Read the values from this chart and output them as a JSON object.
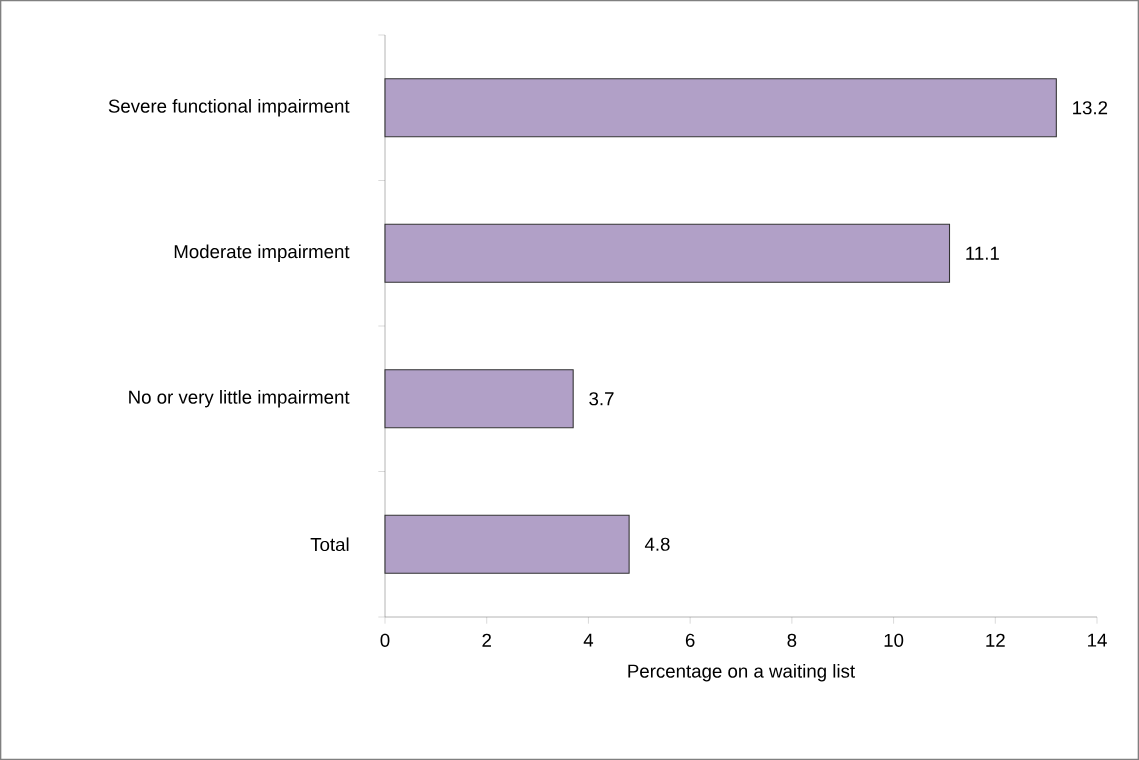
{
  "chart_data": {
    "type": "bar",
    "orientation": "horizontal",
    "categories": [
      "Severe functional impairment",
      "Moderate impairment",
      "No or very little impairment",
      "Total"
    ],
    "values": [
      13.2,
      11.1,
      3.7,
      4.8
    ],
    "color": "#b1a0c7",
    "data_labels": true,
    "xlabel": "Percentage on a waiting list",
    "xlim": [
      0,
      14
    ],
    "xticks": [
      0,
      2,
      4,
      6,
      8,
      10,
      12,
      14
    ]
  }
}
